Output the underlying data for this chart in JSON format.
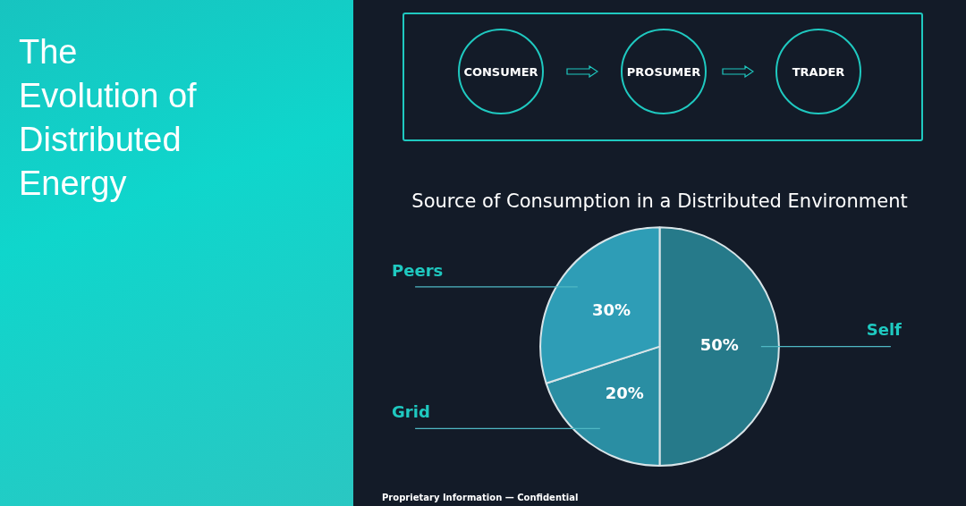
{
  "chart_data": {
    "type": "pie",
    "title": "Source of Consumption in a Distributed Environment",
    "categories": [
      "Self",
      "Grid",
      "Peers"
    ],
    "values": [
      50,
      20,
      30
    ],
    "value_labels": [
      "50%",
      "20%",
      "30%"
    ],
    "colors": [
      "#267a8a",
      "#2a8ea3",
      "#2e9db6"
    ],
    "legend": false,
    "annotations": [
      "The Evolution of Distributed Energy",
      "CONSUMER",
      "PROSUMER",
      "TRADER",
      "Proprietary Information — Confidential"
    ]
  }
}
